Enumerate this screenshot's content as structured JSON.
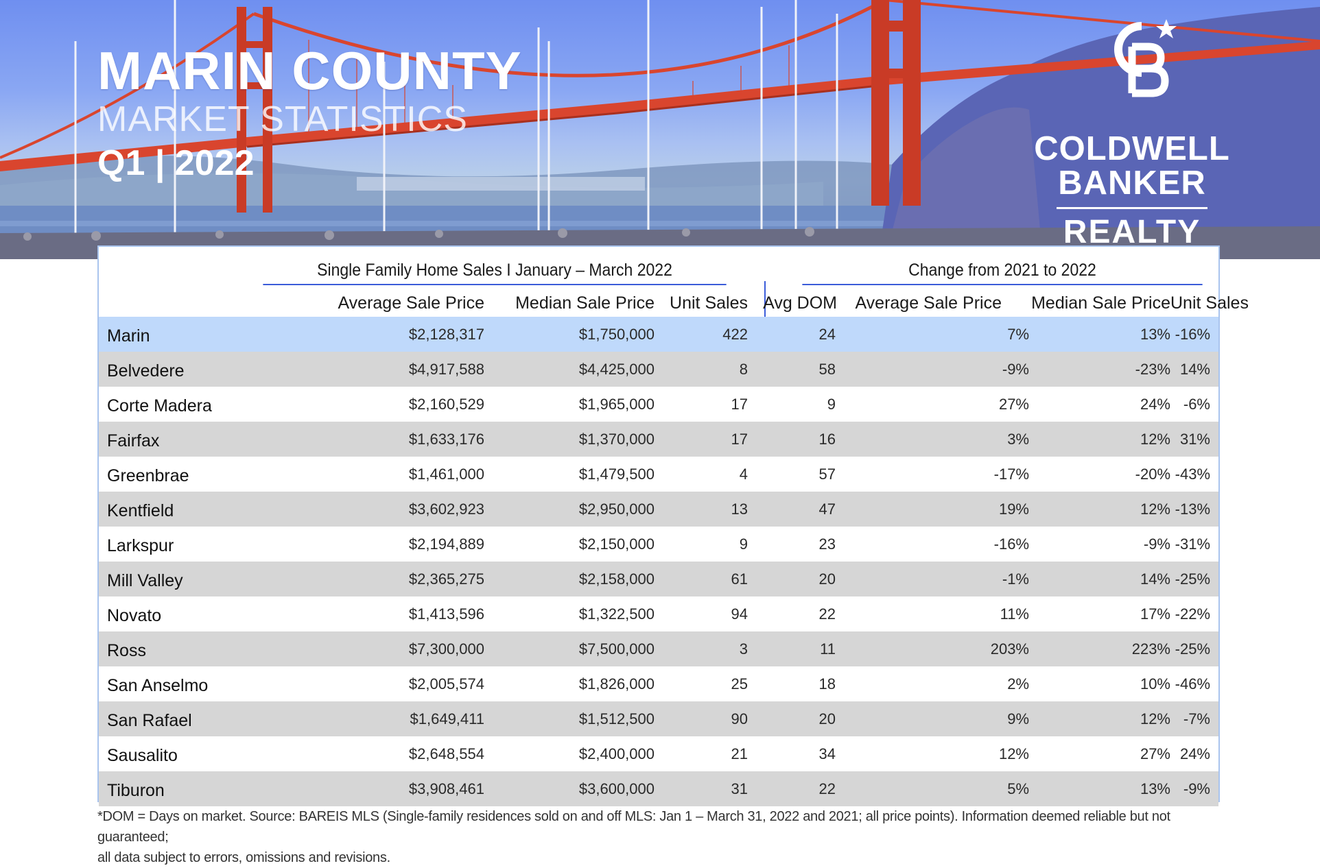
{
  "header": {
    "title": "MARIN COUNTY",
    "subtitle": "MARKET STATISTICS",
    "period": "Q1 | 2022"
  },
  "brand": {
    "logo_icon": "cb-monogram-star-icon",
    "name_line1": "COLDWELL",
    "name_line2": "BANKER",
    "name_line3": "REALTY"
  },
  "table": {
    "group_left": "Single Family Home Sales I January – March 2022",
    "group_right": "Change from 2021 to 2022",
    "columns_left": [
      "Average Sale Price",
      "Median Sale Price",
      "Unit Sales",
      "Avg DOM"
    ],
    "columns_right": [
      "Average Sale Price",
      "Median Sale Price",
      "Unit  Sales"
    ],
    "rows": [
      {
        "name": "Marin",
        "avg": "$2,128,317",
        "median": "$1,750,000",
        "units": "422",
        "dom": "24",
        "chg_avg": "7%",
        "chg_median": "13%",
        "chg_units": "-16%"
      },
      {
        "name": "Belvedere",
        "avg": "$4,917,588",
        "median": "$4,425,000",
        "units": "8",
        "dom": "58",
        "chg_avg": "-9%",
        "chg_median": "-23%",
        "chg_units": "14%"
      },
      {
        "name": "Corte Madera",
        "avg": "$2,160,529",
        "median": "$1,965,000",
        "units": "17",
        "dom": "9",
        "chg_avg": "27%",
        "chg_median": "24%",
        "chg_units": "-6%"
      },
      {
        "name": "Fairfax",
        "avg": "$1,633,176",
        "median": "$1,370,000",
        "units": "17",
        "dom": "16",
        "chg_avg": "3%",
        "chg_median": "12%",
        "chg_units": "31%"
      },
      {
        "name": "Greenbrae",
        "avg": "$1,461,000",
        "median": "$1,479,500",
        "units": "4",
        "dom": "57",
        "chg_avg": "-17%",
        "chg_median": "-20%",
        "chg_units": "-43%"
      },
      {
        "name": "Kentfield",
        "avg": "$3,602,923",
        "median": "$2,950,000",
        "units": "13",
        "dom": "47",
        "chg_avg": "19%",
        "chg_median": "12%",
        "chg_units": "-13%"
      },
      {
        "name": "Larkspur",
        "avg": "$2,194,889",
        "median": "$2,150,000",
        "units": "9",
        "dom": "23",
        "chg_avg": "-16%",
        "chg_median": "-9%",
        "chg_units": "-31%"
      },
      {
        "name": "Mill Valley",
        "avg": "$2,365,275",
        "median": "$2,158,000",
        "units": "61",
        "dom": "20",
        "chg_avg": "-1%",
        "chg_median": "14%",
        "chg_units": "-25%"
      },
      {
        "name": "Novato",
        "avg": "$1,413,596",
        "median": "$1,322,500",
        "units": "94",
        "dom": "22",
        "chg_avg": "11%",
        "chg_median": "17%",
        "chg_units": "-22%"
      },
      {
        "name": "Ross",
        "avg": "$7,300,000",
        "median": "$7,500,000",
        "units": "3",
        "dom": "11",
        "chg_avg": "203%",
        "chg_median": "223%",
        "chg_units": "-25%"
      },
      {
        "name": "San Anselmo",
        "avg": "$2,005,574",
        "median": "$1,826,000",
        "units": "25",
        "dom": "18",
        "chg_avg": "2%",
        "chg_median": "10%",
        "chg_units": "-46%"
      },
      {
        "name": "San Rafael",
        "avg": "$1,649,411",
        "median": "$1,512,500",
        "units": "90",
        "dom": "20",
        "chg_avg": "9%",
        "chg_median": "12%",
        "chg_units": "-7%"
      },
      {
        "name": "Sausalito",
        "avg": "$2,648,554",
        "median": "$2,400,000",
        "units": "21",
        "dom": "34",
        "chg_avg": "12%",
        "chg_median": "27%",
        "chg_units": "24%"
      },
      {
        "name": "Tiburon",
        "avg": "$3,908,461",
        "median": "$3,600,000",
        "units": "31",
        "dom": "22",
        "chg_avg": "5%",
        "chg_median": "13%",
        "chg_units": "-9%"
      }
    ]
  },
  "footnote": {
    "line1": "*DOM = Days on market. Source: BAREIS MLS (Single-family residences sold on and off MLS: Jan 1 – March 31, 2022 and 2021; all price points). Information deemed reliable but not guaranteed;",
    "line2": "all data subject to errors, omissions and revisions."
  },
  "colors": {
    "accent_blue": "#3a5bd9",
    "highlight_row": "#bfd9fb",
    "stripe_gray": "#d6d6d6",
    "bridge_red": "#d9452e"
  }
}
